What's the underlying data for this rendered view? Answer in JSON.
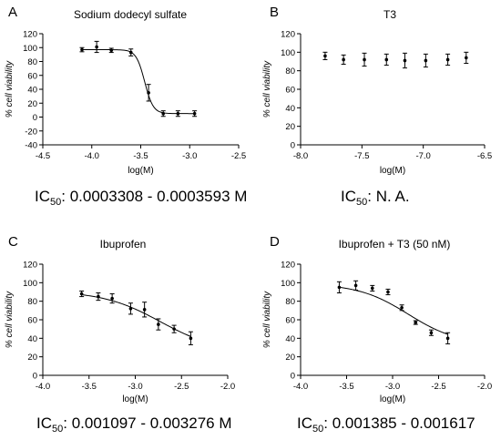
{
  "chart_data": [
    {
      "type": "scatter",
      "panel": "A",
      "title": "Sodium dodecyl sulfate",
      "xlabel": "log(M)",
      "ylabel": "% cell viability",
      "xlim": [
        -4.5,
        -2.5
      ],
      "ylim": [
        -40,
        120
      ],
      "xticks": [
        -4.5,
        -4.0,
        -3.5,
        -3.0,
        -2.5
      ],
      "xtick_labels": [
        "-4.5",
        "-4.0",
        "-3.5",
        "-3.0",
        "-2.5"
      ],
      "yticks": [
        -40,
        -20,
        0,
        20,
        40,
        60,
        80,
        100,
        120
      ],
      "points": [
        {
          "x": -4.1,
          "y": 97,
          "err": 3
        },
        {
          "x": -3.95,
          "y": 101,
          "err": 8
        },
        {
          "x": -3.8,
          "y": 96,
          "err": 3
        },
        {
          "x": -3.6,
          "y": 93,
          "err": 5
        },
        {
          "x": -3.42,
          "y": 35,
          "err": 12
        },
        {
          "x": -3.27,
          "y": 5,
          "err": 4
        },
        {
          "x": -3.12,
          "y": 5,
          "err": 4
        },
        {
          "x": -2.95,
          "y": 5,
          "err": 4
        }
      ],
      "fit": {
        "top": 97,
        "bottom": 5,
        "logIC50": -3.46,
        "hill": 10,
        "x_range": [
          -4.1,
          -2.95
        ]
      },
      "ic50_text": {
        "prefix": "IC",
        "sub": "50",
        "value": ": 0.0003308 - 0.0003593 M"
      }
    },
    {
      "type": "scatter",
      "panel": "B",
      "title": "T3",
      "xlabel": "log(M)",
      "ylabel": "% cell viability",
      "xlim": [
        -8.0,
        -6.5
      ],
      "ylim": [
        0,
        120
      ],
      "xticks": [
        -8.0,
        -7.5,
        -7.0,
        -6.5
      ],
      "xtick_labels": [
        "-8.0",
        "-7.5",
        "-7.0",
        "-6.5"
      ],
      "yticks": [
        0,
        20,
        40,
        60,
        80,
        100,
        120
      ],
      "points": [
        {
          "x": -7.8,
          "y": 96,
          "err": 4
        },
        {
          "x": -7.65,
          "y": 92,
          "err": 5
        },
        {
          "x": -7.48,
          "y": 92,
          "err": 7
        },
        {
          "x": -7.3,
          "y": 92,
          "err": 6
        },
        {
          "x": -7.15,
          "y": 91,
          "err": 8
        },
        {
          "x": -6.98,
          "y": 91,
          "err": 7
        },
        {
          "x": -6.8,
          "y": 92,
          "err": 6
        },
        {
          "x": -6.65,
          "y": 94,
          "err": 6
        }
      ],
      "fit": null,
      "ic50_text": {
        "prefix": "IC",
        "sub": "50",
        "value": ": N. A."
      }
    },
    {
      "type": "scatter",
      "panel": "C",
      "title": "Ibuprofen",
      "xlabel": "log(M)",
      "ylabel": "% cell viability",
      "xlim": [
        -4.0,
        -2.0
      ],
      "ylim": [
        0,
        120
      ],
      "xticks": [
        -4.0,
        -3.5,
        -3.0,
        -2.5,
        -2.0
      ],
      "xtick_labels": [
        "-4.0",
        "-3.5",
        "-3.0",
        "-2.5",
        "-2.0"
      ],
      "yticks": [
        0,
        20,
        40,
        60,
        80,
        100,
        120
      ],
      "points": [
        {
          "x": -3.58,
          "y": 88,
          "err": 3
        },
        {
          "x": -3.4,
          "y": 85,
          "err": 4
        },
        {
          "x": -3.25,
          "y": 83,
          "err": 5
        },
        {
          "x": -3.05,
          "y": 72,
          "err": 6
        },
        {
          "x": -2.9,
          "y": 71,
          "err": 8
        },
        {
          "x": -2.75,
          "y": 55,
          "err": 6
        },
        {
          "x": -2.58,
          "y": 50,
          "err": 4
        },
        {
          "x": -2.4,
          "y": 40,
          "err": 7
        }
      ],
      "fit": {
        "top": 91,
        "bottom": 25,
        "logIC50": -2.73,
        "hill": 1.4,
        "x_range": [
          -3.58,
          -2.4
        ]
      },
      "ic50_text": {
        "prefix": "IC",
        "sub": "50",
        "value": ": 0.001097 - 0.003276 M"
      }
    },
    {
      "type": "scatter",
      "panel": "D",
      "title": "Ibuprofen + T3 (50 nM)",
      "xlabel": "log(M)",
      "ylabel": "% cell viability",
      "xlim": [
        -4.0,
        -2.0
      ],
      "ylim": [
        0,
        120
      ],
      "xticks": [
        -4.0,
        -3.5,
        -3.0,
        -2.5,
        -2.0
      ],
      "xtick_labels": [
        "-4.0",
        "-3.5",
        "-3.0",
        "-2.5",
        "-2.0"
      ],
      "yticks": [
        0,
        20,
        40,
        60,
        80,
        100,
        120
      ],
      "points": [
        {
          "x": -3.58,
          "y": 95,
          "err": 6
        },
        {
          "x": -3.4,
          "y": 97,
          "err": 5
        },
        {
          "x": -3.22,
          "y": 94,
          "err": 3
        },
        {
          "x": -3.05,
          "y": 90,
          "err": 3
        },
        {
          "x": -2.9,
          "y": 73,
          "err": 3
        },
        {
          "x": -2.75,
          "y": 57,
          "err": 2
        },
        {
          "x": -2.58,
          "y": 46,
          "err": 3
        },
        {
          "x": -2.4,
          "y": 40,
          "err": 6
        }
      ],
      "fit": {
        "top": 99,
        "bottom": 33,
        "logIC50": -2.83,
        "hill": 1.6,
        "x_range": [
          -3.58,
          -2.4
        ]
      },
      "ic50_text": {
        "prefix": "IC",
        "sub": "50",
        "value": ": 0.001385 - 0.001617"
      }
    }
  ]
}
